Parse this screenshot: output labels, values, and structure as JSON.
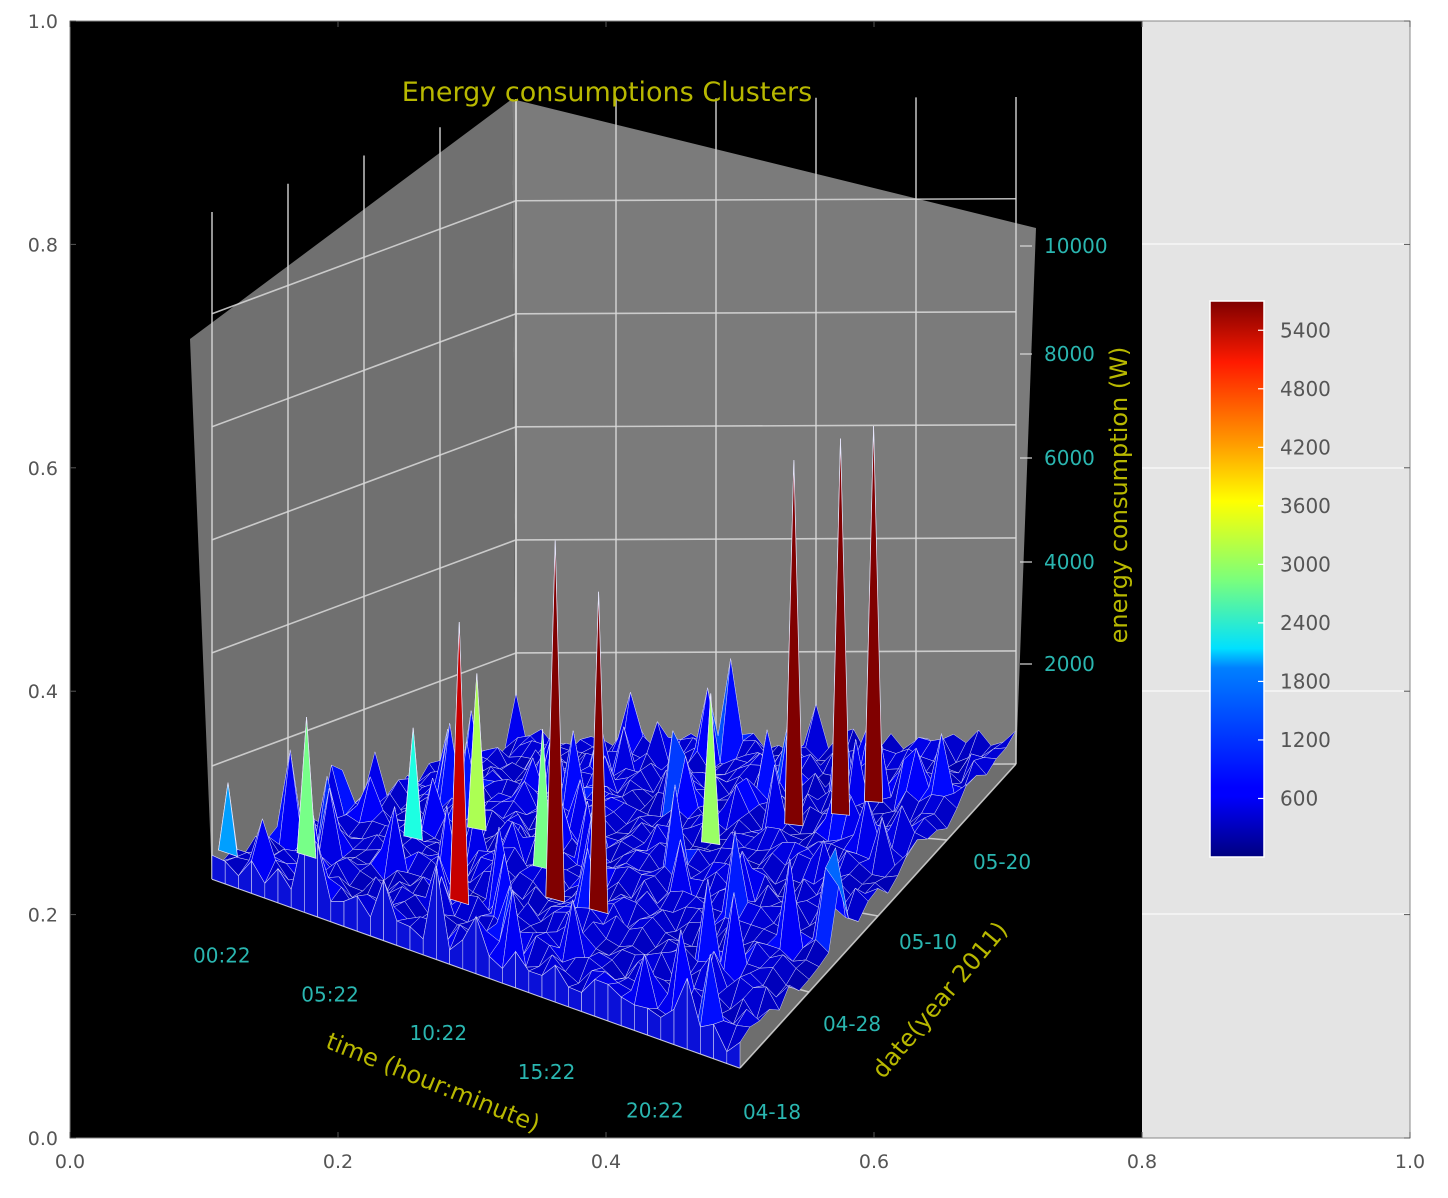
{
  "outer_axes": {
    "x_ticks": [
      "0.0",
      "0.2",
      "0.4",
      "0.6",
      "0.8",
      "1.0"
    ],
    "y_ticks": [
      "0.0",
      "0.2",
      "0.4",
      "0.6",
      "0.8",
      "1.0"
    ]
  },
  "chart_data": {
    "type": "surface",
    "title": "Energy consumptions Clusters",
    "xlabel": "time (hour:minute)",
    "ylabel": "date(year 2011)",
    "zlabel": "energy consumption (W)",
    "x_ticks": [
      "00:22",
      "05:22",
      "10:22",
      "15:22",
      "20:22"
    ],
    "y_ticks": [
      "04-18",
      "04-28",
      "05-10",
      "05-20"
    ],
    "z_ticks": [
      "2000",
      "4000",
      "6000",
      "8000",
      "10000"
    ],
    "zlim": [
      0,
      10000
    ],
    "colormap": "jet",
    "colorbar": {
      "ticks": [
        "600",
        "1200",
        "1800",
        "2400",
        "3000",
        "3600",
        "4200",
        "4800",
        "5400"
      ],
      "range": [
        0,
        5700
      ]
    },
    "peaks": [
      {
        "time": "00:22",
        "date": "04-20",
        "value": 1600
      },
      {
        "time": "02:30",
        "date": "04-24",
        "value": 2800
      },
      {
        "time": "04:30",
        "date": "05-02",
        "value": 2300
      },
      {
        "time": "06:00",
        "date": "05-06",
        "value": 3100
      },
      {
        "time": "09:30",
        "date": "04-24",
        "value": 5300
      },
      {
        "time": "10:30",
        "date": "05-02",
        "value": 2800
      },
      {
        "time": "12:30",
        "date": "04-28",
        "value": 6700
      },
      {
        "time": "14:30",
        "date": "04-28",
        "value": 6000
      },
      {
        "time": "15:30",
        "date": "05-10",
        "value": 3000
      },
      {
        "time": "18:00",
        "date": "05-14",
        "value": 6800
      },
      {
        "time": "19:30",
        "date": "05-16",
        "value": 7000
      },
      {
        "time": "20:22",
        "date": "05-18",
        "value": 7000
      }
    ]
  }
}
